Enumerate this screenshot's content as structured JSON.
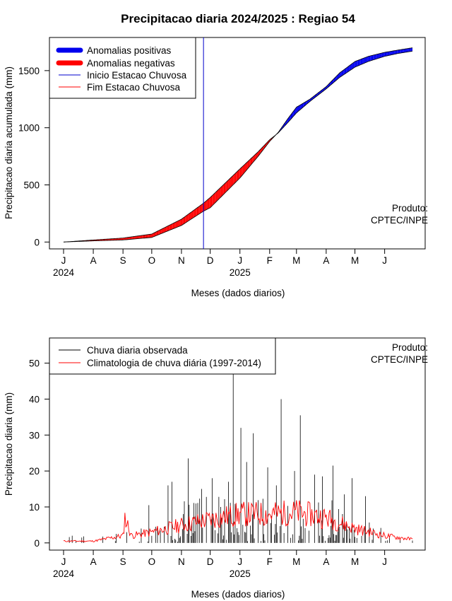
{
  "chart_data": [
    {
      "type": "area",
      "title": "Precipitacao diaria 2024/2025 : Regiao 54",
      "xlabel": "Meses (dados diarios)",
      "ylabel": "Precipitacao diaria acumulada (mm)",
      "x_tick_labels": [
        "J",
        "A",
        "S",
        "O",
        "N",
        "D",
        "J",
        "F",
        "M",
        "A",
        "M",
        "J"
      ],
      "year_labels": [
        "2024",
        "2025"
      ],
      "yticks": [
        0,
        500,
        1000,
        1500
      ],
      "ylim": [
        -60,
        1790
      ],
      "x_start": "2024-07-01",
      "x_end": "2025-06-30",
      "grid": false,
      "legend_position": "top-left",
      "annotation": "Produto: CPTEC/INPE",
      "colors": {
        "positive": "#0000ee",
        "negative": "#ff0000",
        "onset": "#0000cc",
        "end": "#ff0000"
      },
      "legend": [
        {
          "label": "Anomalias positivas",
          "style": "thick",
          "color": "#0000ee"
        },
        {
          "label": "Anomalias negativas",
          "style": "thick",
          "color": "#ff0000"
        },
        {
          "label": "Inicio Estacao Chuvosa",
          "style": "thin",
          "color": "#0000cc"
        },
        {
          "label": "Fim Estacao Chuvosa",
          "style": "thin",
          "color": "#ff0000"
        }
      ],
      "onset_date": "2024-11-24",
      "series": [
        {
          "name": "observed_cumulative",
          "x": [
            "2024-07-01",
            "2024-08-01",
            "2024-09-01",
            "2024-10-01",
            "2024-11-01",
            "2024-11-24",
            "2024-12-01",
            "2025-01-01",
            "2025-01-20",
            "2025-02-01",
            "2025-02-10",
            "2025-02-20",
            "2025-03-01",
            "2025-03-15",
            "2025-04-01",
            "2025-04-15",
            "2025-05-01",
            "2025-05-15",
            "2025-06-01",
            "2025-06-15",
            "2025-06-30"
          ],
          "values": [
            0,
            10,
            18,
            40,
            145,
            270,
            300,
            560,
            750,
            880,
            960,
            1080,
            1180,
            1250,
            1360,
            1480,
            1580,
            1625,
            1660,
            1680,
            1700
          ]
        },
        {
          "name": "climatology_cumulative",
          "x": [
            "2024-07-01",
            "2024-08-01",
            "2024-09-01",
            "2024-10-01",
            "2024-11-01",
            "2024-11-24",
            "2024-12-01",
            "2025-01-01",
            "2025-01-20",
            "2025-02-01",
            "2025-02-10",
            "2025-02-20",
            "2025-03-01",
            "2025-03-15",
            "2025-04-01",
            "2025-04-15",
            "2025-05-01",
            "2025-05-15",
            "2025-06-01",
            "2025-06-15",
            "2025-06-30"
          ],
          "values": [
            0,
            18,
            35,
            70,
            200,
            340,
            390,
            640,
            790,
            895,
            955,
            1045,
            1130,
            1230,
            1340,
            1440,
            1530,
            1580,
            1625,
            1650,
            1670
          ]
        }
      ]
    },
    {
      "type": "bar",
      "xlabel": "Meses (dados diarios)",
      "ylabel": "Precipitacao diaria (mm)",
      "x_tick_labels": [
        "J",
        "A",
        "S",
        "O",
        "N",
        "D",
        "J",
        "F",
        "M",
        "A",
        "M",
        "J"
      ],
      "year_labels": [
        "2024",
        "2025"
      ],
      "yticks": [
        0,
        10,
        20,
        30,
        40,
        50
      ],
      "ylim": [
        -2,
        57
      ],
      "x_start": "2024-07-01",
      "x_end": "2025-06-30",
      "grid": false,
      "legend_position": "top-left",
      "annotation": "Produto: CPTEC/INPE",
      "colors": {
        "observed": "#000000",
        "climatology": "#ff0000"
      },
      "legend": [
        {
          "label": "Chuva diaria observada",
          "color": "#000000"
        },
        {
          "label": "Climatologia de chuva diária (1997-2014)",
          "color": "#ff0000"
        }
      ],
      "series": [
        {
          "name": "observed_daily_peaks",
          "x": [
            "2024-07-10",
            "2024-07-20",
            "2024-08-25",
            "2024-09-05",
            "2024-09-20",
            "2024-09-28",
            "2024-10-05",
            "2024-10-18",
            "2024-10-22",
            "2024-11-08",
            "2024-11-22",
            "2024-12-03",
            "2024-12-12",
            "2024-12-20",
            "2024-12-25",
            "2025-01-02",
            "2025-01-08",
            "2025-01-15",
            "2025-01-30",
            "2025-02-08",
            "2025-02-13",
            "2025-02-27",
            "2025-03-05",
            "2025-03-20",
            "2025-03-28",
            "2025-04-08",
            "2025-04-20",
            "2025-04-28",
            "2025-05-12",
            "2025-05-20"
          ],
          "values": [
            2,
            1.5,
            2.5,
            3,
            4,
            10.5,
            4.5,
            16,
            17,
            23.5,
            15,
            18,
            10,
            17,
            47,
            32,
            22.5,
            30.5,
            21,
            16,
            40,
            20,
            35.5,
            19,
            18.5,
            21.5,
            13.5,
            18,
            13,
            4
          ]
        },
        {
          "name": "climatology_daily",
          "x": [
            "2024-07-01",
            "2024-08-01",
            "2024-09-01",
            "2024-09-03",
            "2024-09-10",
            "2024-10-01",
            "2024-11-01",
            "2024-12-01",
            "2025-01-01",
            "2025-02-01",
            "2025-03-01",
            "2025-04-01",
            "2025-05-01",
            "2025-06-01",
            "2025-06-30"
          ],
          "values": [
            0.5,
            0.5,
            2,
            7,
            2,
            3,
            5,
            6.5,
            8,
            8,
            8.5,
            7,
            4,
            2,
            1
          ]
        }
      ]
    }
  ]
}
